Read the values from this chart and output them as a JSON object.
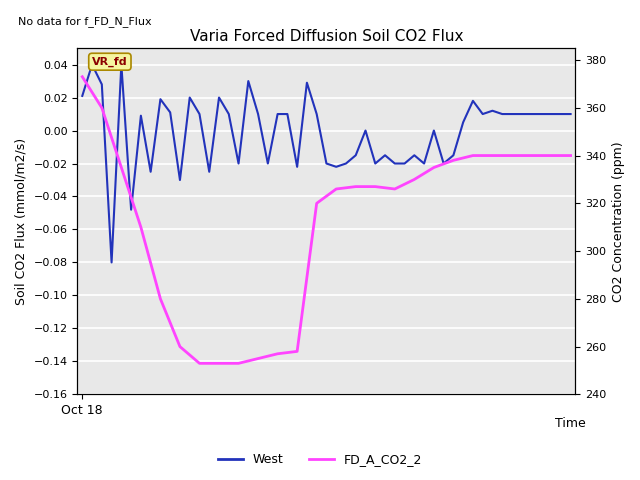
{
  "title": "Varia Forced Diffusion Soil CO2 Flux",
  "top_left_text": "No data for f_FD_N_Flux",
  "xlabel": "Time",
  "ylabel_left": "Soil CO2 Flux (mmol/m2/s)",
  "ylabel_right": "CO2 Concentration (ppm)",
  "ylim_left": [
    -0.16,
    0.05
  ],
  "ylim_right": [
    240,
    385
  ],
  "yticks_left": [
    -0.16,
    -0.14,
    -0.12,
    -0.1,
    -0.08,
    -0.06,
    -0.04,
    -0.02,
    0.0,
    0.02,
    0.04
  ],
  "yticks_right": [
    240,
    260,
    280,
    300,
    320,
    340,
    360,
    380
  ],
  "xtick_label": "Oct 18",
  "bg_color": "#e8e8e8",
  "annotation_text": "VR_fd",
  "west_color": "#2233bb",
  "co2_color": "#ff44ff",
  "west_x": [
    0,
    1,
    2,
    3,
    4,
    5,
    6,
    7,
    8,
    9,
    10,
    11,
    12,
    13,
    14,
    15,
    16,
    17,
    18,
    19,
    20,
    21,
    22,
    23,
    24,
    25,
    26,
    27,
    28,
    29,
    30,
    31,
    32,
    33,
    34,
    35,
    36,
    37,
    38,
    39,
    40,
    41,
    42,
    43,
    44,
    45,
    46,
    47,
    48,
    49,
    50
  ],
  "west_y": [
    0.021,
    0.04,
    0.028,
    -0.08,
    0.04,
    -0.048,
    0.009,
    -0.025,
    0.019,
    0.011,
    -0.03,
    0.02,
    0.01,
    -0.025,
    0.02,
    0.01,
    -0.02,
    0.03,
    0.01,
    -0.02,
    0.01,
    0.01,
    -0.022,
    0.029,
    0.01,
    -0.02,
    -0.022,
    -0.02,
    -0.015,
    0.0,
    -0.02,
    -0.015,
    -0.02,
    -0.02,
    -0.015,
    -0.02,
    0.0,
    -0.02,
    -0.015,
    0.005,
    0.018,
    0.01,
    0.012,
    0.01,
    0.01,
    0.01,
    0.01,
    0.01,
    0.01,
    0.01,
    0.01
  ],
  "co2_x": [
    0,
    2,
    4,
    6,
    8,
    10,
    12,
    14,
    16,
    18,
    20,
    22,
    24,
    26,
    28,
    30,
    32,
    34,
    36,
    38,
    40,
    42,
    44,
    46,
    48,
    50
  ],
  "co2_y": [
    373,
    360,
    335,
    310,
    280,
    260,
    253,
    253,
    253,
    255,
    257,
    258,
    320,
    326,
    327,
    327,
    326,
    330,
    335,
    338,
    340,
    340,
    340,
    340,
    340,
    340
  ]
}
